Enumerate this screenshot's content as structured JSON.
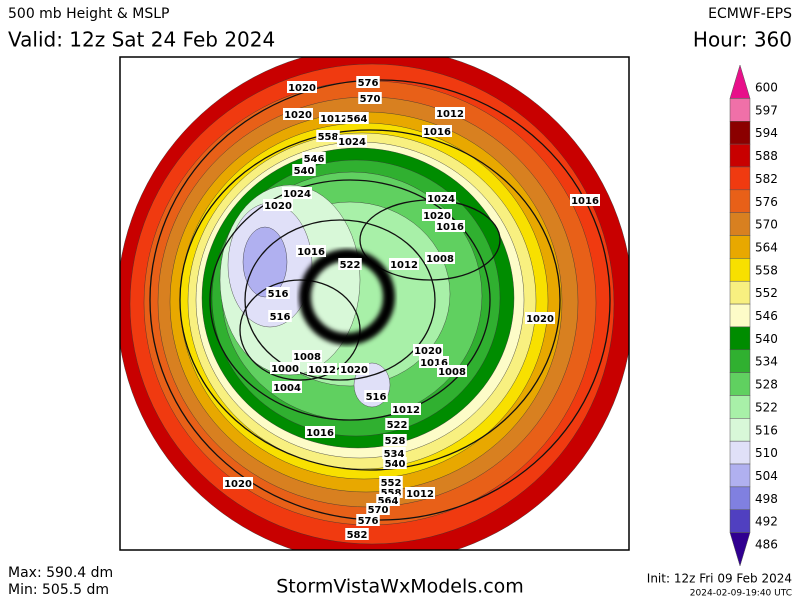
{
  "header": {
    "title": "500 mb Height & MSLP",
    "valid": "Valid: 12z Sat 24 Feb 2024",
    "model": "ECMWF-EPS",
    "hour": "Hour: 360"
  },
  "colorbar": [
    {
      "value": 600,
      "color": "#e8108a"
    },
    {
      "value": 597,
      "color": "#f070a8"
    },
    {
      "value": 594,
      "color": "#8b0000"
    },
    {
      "value": 588,
      "color": "#c80000"
    },
    {
      "value": 582,
      "color": "#f03a10"
    },
    {
      "value": 576,
      "color": "#e86018"
    },
    {
      "value": 570,
      "color": "#d88020"
    },
    {
      "value": 564,
      "color": "#e8a800"
    },
    {
      "value": 558,
      "color": "#f8e000"
    },
    {
      "value": 552,
      "color": "#f8f080"
    },
    {
      "value": 546,
      "color": "#fdfcc8"
    },
    {
      "value": 540,
      "color": "#008c00"
    },
    {
      "value": 534,
      "color": "#30b030"
    },
    {
      "value": 528,
      "color": "#60d060"
    },
    {
      "value": 522,
      "color": "#a8f0a8"
    },
    {
      "value": 516,
      "color": "#d8f8d8"
    },
    {
      "value": 510,
      "color": "#e0e0f8"
    },
    {
      "value": 504,
      "color": "#b0b0f0"
    },
    {
      "value": 498,
      "color": "#8080e0"
    },
    {
      "value": 492,
      "color": "#5040c0"
    },
    {
      "value": 486,
      "color": "#300090"
    }
  ],
  "map": {
    "labels": [
      1020,
      576,
      570,
      1020,
      1012,
      564,
      1012,
      558,
      1024,
      1016,
      546,
      540,
      1024,
      1020,
      1024,
      1020,
      1016,
      1016,
      1012,
      1008,
      522,
      516,
      516,
      1020,
      1008,
      1000,
      1012,
      1020,
      1020,
      1016,
      1008,
      1004,
      1012,
      516,
      522,
      528,
      534,
      540,
      1016,
      1020,
      1016,
      552,
      558,
      1012,
      564,
      570,
      576,
      582
    ]
  },
  "footer": {
    "max": "Max: 590.4 dm",
    "min": "Min: 505.5 dm",
    "site": "StormVistaWxModels.com",
    "init": "Init: 12z Fri 09 Feb 2024",
    "timestamp": "2024-02-09-19:40 UTC"
  }
}
